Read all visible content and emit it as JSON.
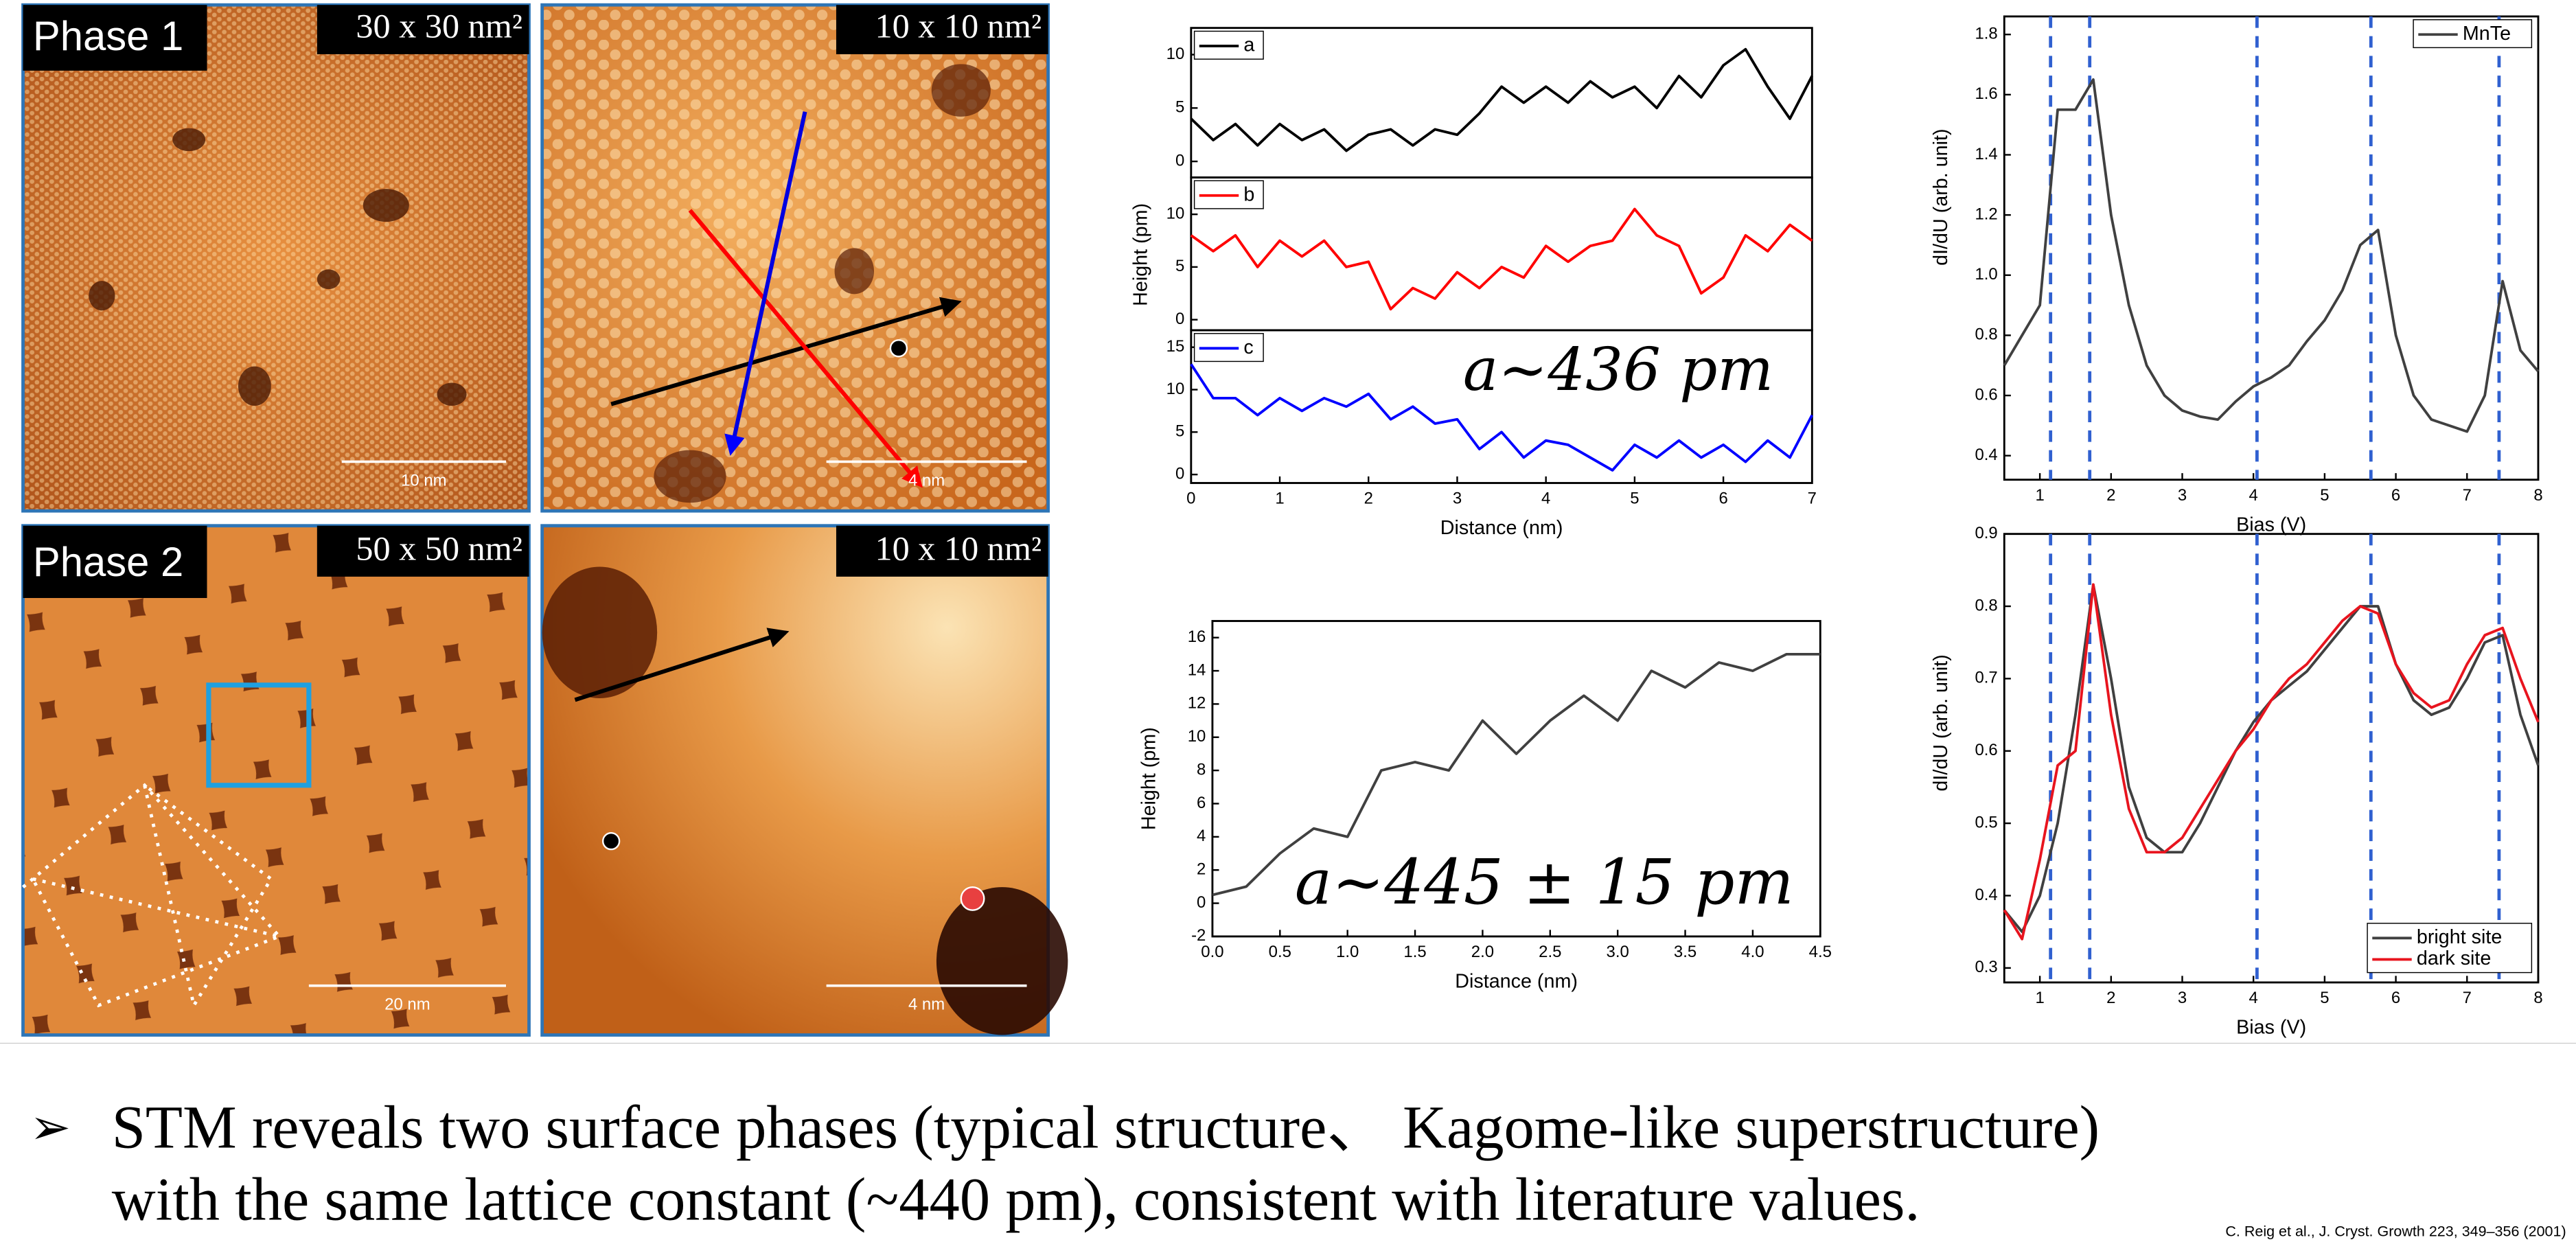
{
  "panels": [
    {
      "label": "Phase 1",
      "size": "30 x 30 nm²",
      "scale": "10 nm"
    },
    {
      "size": "10 x 10 nm²",
      "scale": "4 nm"
    },
    {
      "label": "Phase 2",
      "size": "50 x 50 nm²",
      "scale": "20 nm"
    },
    {
      "size": "10 x 10 nm²",
      "scale": "4 nm"
    }
  ],
  "bullet": [
    "STM reveals two surface phases (typical structure、 Kagome-like superstructure)",
    "with the same lattice constant (~440 pm), consistent with literature values."
  ],
  "citation": "C. Reig et al., J. Cryst. Growth 223, 349–356 (2001)",
  "chart_data": [
    {
      "type": "line",
      "xlim": [
        0,
        7
      ],
      "ylim": [
        -1.5,
        12.5
      ],
      "yticks": [
        0,
        5,
        10
      ],
      "legend": "upper left",
      "x": [
        0,
        0.25,
        0.5,
        0.75,
        1,
        1.25,
        1.5,
        1.75,
        2,
        2.25,
        2.5,
        2.75,
        3,
        3.25,
        3.5,
        3.75,
        4,
        4.25,
        4.5,
        4.75,
        5,
        5.25,
        5.5,
        5.75,
        6,
        6.25,
        6.5,
        6.75,
        7
      ],
      "series": [
        {
          "name": "a",
          "color": "#000000",
          "values": [
            4,
            2,
            3.5,
            1.5,
            3.5,
            2,
            3,
            1,
            2.5,
            3,
            1.5,
            3,
            2.5,
            4.5,
            7,
            5.5,
            7,
            5.5,
            7.5,
            6,
            7,
            5,
            8,
            6,
            9,
            10.5,
            7,
            4,
            8
          ]
        }
      ]
    },
    {
      "type": "line",
      "xlim": [
        0,
        7
      ],
      "ylim": [
        -1,
        13.5
      ],
      "yticks": [
        0,
        5,
        10
      ],
      "legend": "upper left",
      "ylabel": "Height (pm)",
      "x": [
        0,
        0.25,
        0.5,
        0.75,
        1,
        1.25,
        1.5,
        1.75,
        2,
        2.25,
        2.5,
        2.75,
        3,
        3.25,
        3.5,
        3.75,
        4,
        4.25,
        4.5,
        4.75,
        5,
        5.25,
        5.5,
        5.75,
        6,
        6.25,
        6.5,
        6.75,
        7
      ],
      "series": [
        {
          "name": "b",
          "color": "#ff0000",
          "values": [
            8,
            6.5,
            8,
            5,
            7.5,
            6,
            7.5,
            5,
            5.5,
            1,
            3,
            2,
            4.5,
            3,
            5,
            4,
            7,
            5.5,
            7,
            7.5,
            10.5,
            8,
            7,
            2.5,
            4,
            8,
            6.5,
            9,
            7.5
          ]
        }
      ]
    },
    {
      "type": "line",
      "xlim": [
        0,
        7
      ],
      "ylim": [
        -1,
        17
      ],
      "yticks": [
        0,
        5,
        10,
        15
      ],
      "xticks": [
        0,
        1,
        2,
        3,
        4,
        5,
        6,
        7
      ],
      "xlabel": "Distance (nm)",
      "legend": "upper left",
      "annotation": "a~436 pm",
      "x": [
        0,
        0.25,
        0.5,
        0.75,
        1,
        1.25,
        1.5,
        1.75,
        2,
        2.25,
        2.5,
        2.75,
        3,
        3.25,
        3.5,
        3.75,
        4,
        4.25,
        4.5,
        4.75,
        5,
        5.25,
        5.5,
        5.75,
        6,
        6.25,
        6.5,
        6.75,
        7
      ],
      "series": [
        {
          "name": "c",
          "color": "#0000ff",
          "values": [
            13,
            9,
            9,
            7,
            9,
            7.5,
            9,
            8,
            9.5,
            6.5,
            8,
            6,
            6.5,
            3,
            5,
            2,
            4,
            3.5,
            2,
            0.5,
            3.5,
            2,
            4,
            2,
            3.5,
            1.5,
            4,
            2,
            7
          ]
        }
      ]
    },
    {
      "type": "line",
      "xlim": [
        0,
        4.5
      ],
      "ylim": [
        -2,
        17
      ],
      "yticks": [
        -2,
        0,
        2,
        4,
        6,
        8,
        10,
        12,
        14,
        16
      ],
      "xticks": [
        {
          "value": 0,
          "label": "0.0"
        },
        0.5,
        {
          "value": 1,
          "label": "1.0"
        },
        1.5,
        {
          "value": 2,
          "label": "2.0"
        },
        2.5,
        {
          "value": 3,
          "label": "3.0"
        },
        3.5,
        {
          "value": 4,
          "label": "4.0"
        },
        4.5
      ],
      "xlabel": "Distance (nm)",
      "ylabel": "Height (pm)",
      "annotation": "a~445 ± 15 pm",
      "x": [
        0,
        0.25,
        0.5,
        0.75,
        1,
        1.25,
        1.5,
        1.75,
        2,
        2.25,
        2.5,
        2.75,
        3,
        3.25,
        3.5,
        3.75,
        4,
        4.25,
        4.5
      ],
      "series": [
        {
          "color": "#404040",
          "values": [
            0.5,
            1,
            3,
            4.5,
            4,
            8,
            8.5,
            8,
            11,
            9,
            11,
            12.5,
            11,
            14,
            13,
            14.5,
            14,
            15,
            15
          ]
        }
      ]
    },
    {
      "type": "line",
      "xlim": [
        0.5,
        8
      ],
      "ylim": [
        0.32,
        1.86
      ],
      "xticks": [
        1,
        2,
        3,
        4,
        5,
        6,
        7,
        8
      ],
      "yticks": [
        0.4,
        0.6,
        0.8,
        {
          "value": 1,
          "label": "1.0"
        },
        1.2,
        1.4,
        1.6,
        1.8
      ],
      "xlabel": "Bias (V)",
      "ylabel": "dI/dU (arb. unit)",
      "legend": "upper right",
      "vlines": [
        1.15,
        1.7,
        4.05,
        5.65,
        7.45
      ],
      "x": [
        0.5,
        0.75,
        1,
        1.25,
        1.5,
        1.75,
        2,
        2.25,
        2.5,
        2.75,
        3,
        3.25,
        3.5,
        3.75,
        4,
        4.25,
        4.5,
        4.75,
        5,
        5.25,
        5.5,
        5.75,
        6,
        6.25,
        6.5,
        6.75,
        7,
        7.25,
        7.5,
        7.75,
        8
      ],
      "series": [
        {
          "name": "MnTe",
          "color": "#404040",
          "values": [
            0.7,
            0.8,
            0.9,
            1.55,
            1.55,
            1.65,
            1.2,
            0.9,
            0.7,
            0.6,
            0.55,
            0.53,
            0.52,
            0.58,
            0.63,
            0.66,
            0.7,
            0.78,
            0.85,
            0.95,
            1.1,
            1.15,
            0.8,
            0.6,
            0.52,
            0.5,
            0.48,
            0.6,
            0.98,
            0.75,
            0.68
          ]
        }
      ]
    },
    {
      "type": "line",
      "xlim": [
        0.5,
        8
      ],
      "ylim": [
        0.28,
        0.9
      ],
      "xticks": [
        1,
        2,
        3,
        4,
        5,
        6,
        7,
        8
      ],
      "yticks": [
        0.3,
        0.4,
        0.5,
        0.6,
        0.7,
        0.8,
        0.9
      ],
      "xlabel": "Bias (V)",
      "ylabel": "dI/dU (arb. unit)",
      "legend": "lower right",
      "vlines": [
        1.15,
        1.7,
        4.05,
        5.65,
        7.45
      ],
      "x": [
        0.5,
        0.75,
        1,
        1.25,
        1.5,
        1.75,
        2,
        2.25,
        2.5,
        2.75,
        3,
        3.25,
        3.5,
        3.75,
        4,
        4.25,
        4.5,
        4.75,
        5,
        5.25,
        5.5,
        5.75,
        6,
        6.25,
        6.5,
        6.75,
        7,
        7.25,
        7.5,
        7.75,
        8
      ],
      "series": [
        {
          "name": "bright site",
          "color": "#404040",
          "values": [
            0.38,
            0.35,
            0.4,
            0.5,
            0.65,
            0.83,
            0.7,
            0.55,
            0.48,
            0.46,
            0.46,
            0.5,
            0.55,
            0.6,
            0.64,
            0.67,
            0.69,
            0.71,
            0.74,
            0.77,
            0.8,
            0.8,
            0.72,
            0.67,
            0.65,
            0.66,
            0.7,
            0.75,
            0.76,
            0.65,
            0.58
          ]
        },
        {
          "name": "dark site",
          "color": "#e8141e",
          "values": [
            0.38,
            0.34,
            0.45,
            0.58,
            0.6,
            0.83,
            0.65,
            0.52,
            0.46,
            0.46,
            0.48,
            0.52,
            0.56,
            0.6,
            0.63,
            0.67,
            0.7,
            0.72,
            0.75,
            0.78,
            0.8,
            0.79,
            0.72,
            0.68,
            0.66,
            0.67,
            0.72,
            0.76,
            0.77,
            0.7,
            0.64
          ]
        }
      ]
    }
  ]
}
